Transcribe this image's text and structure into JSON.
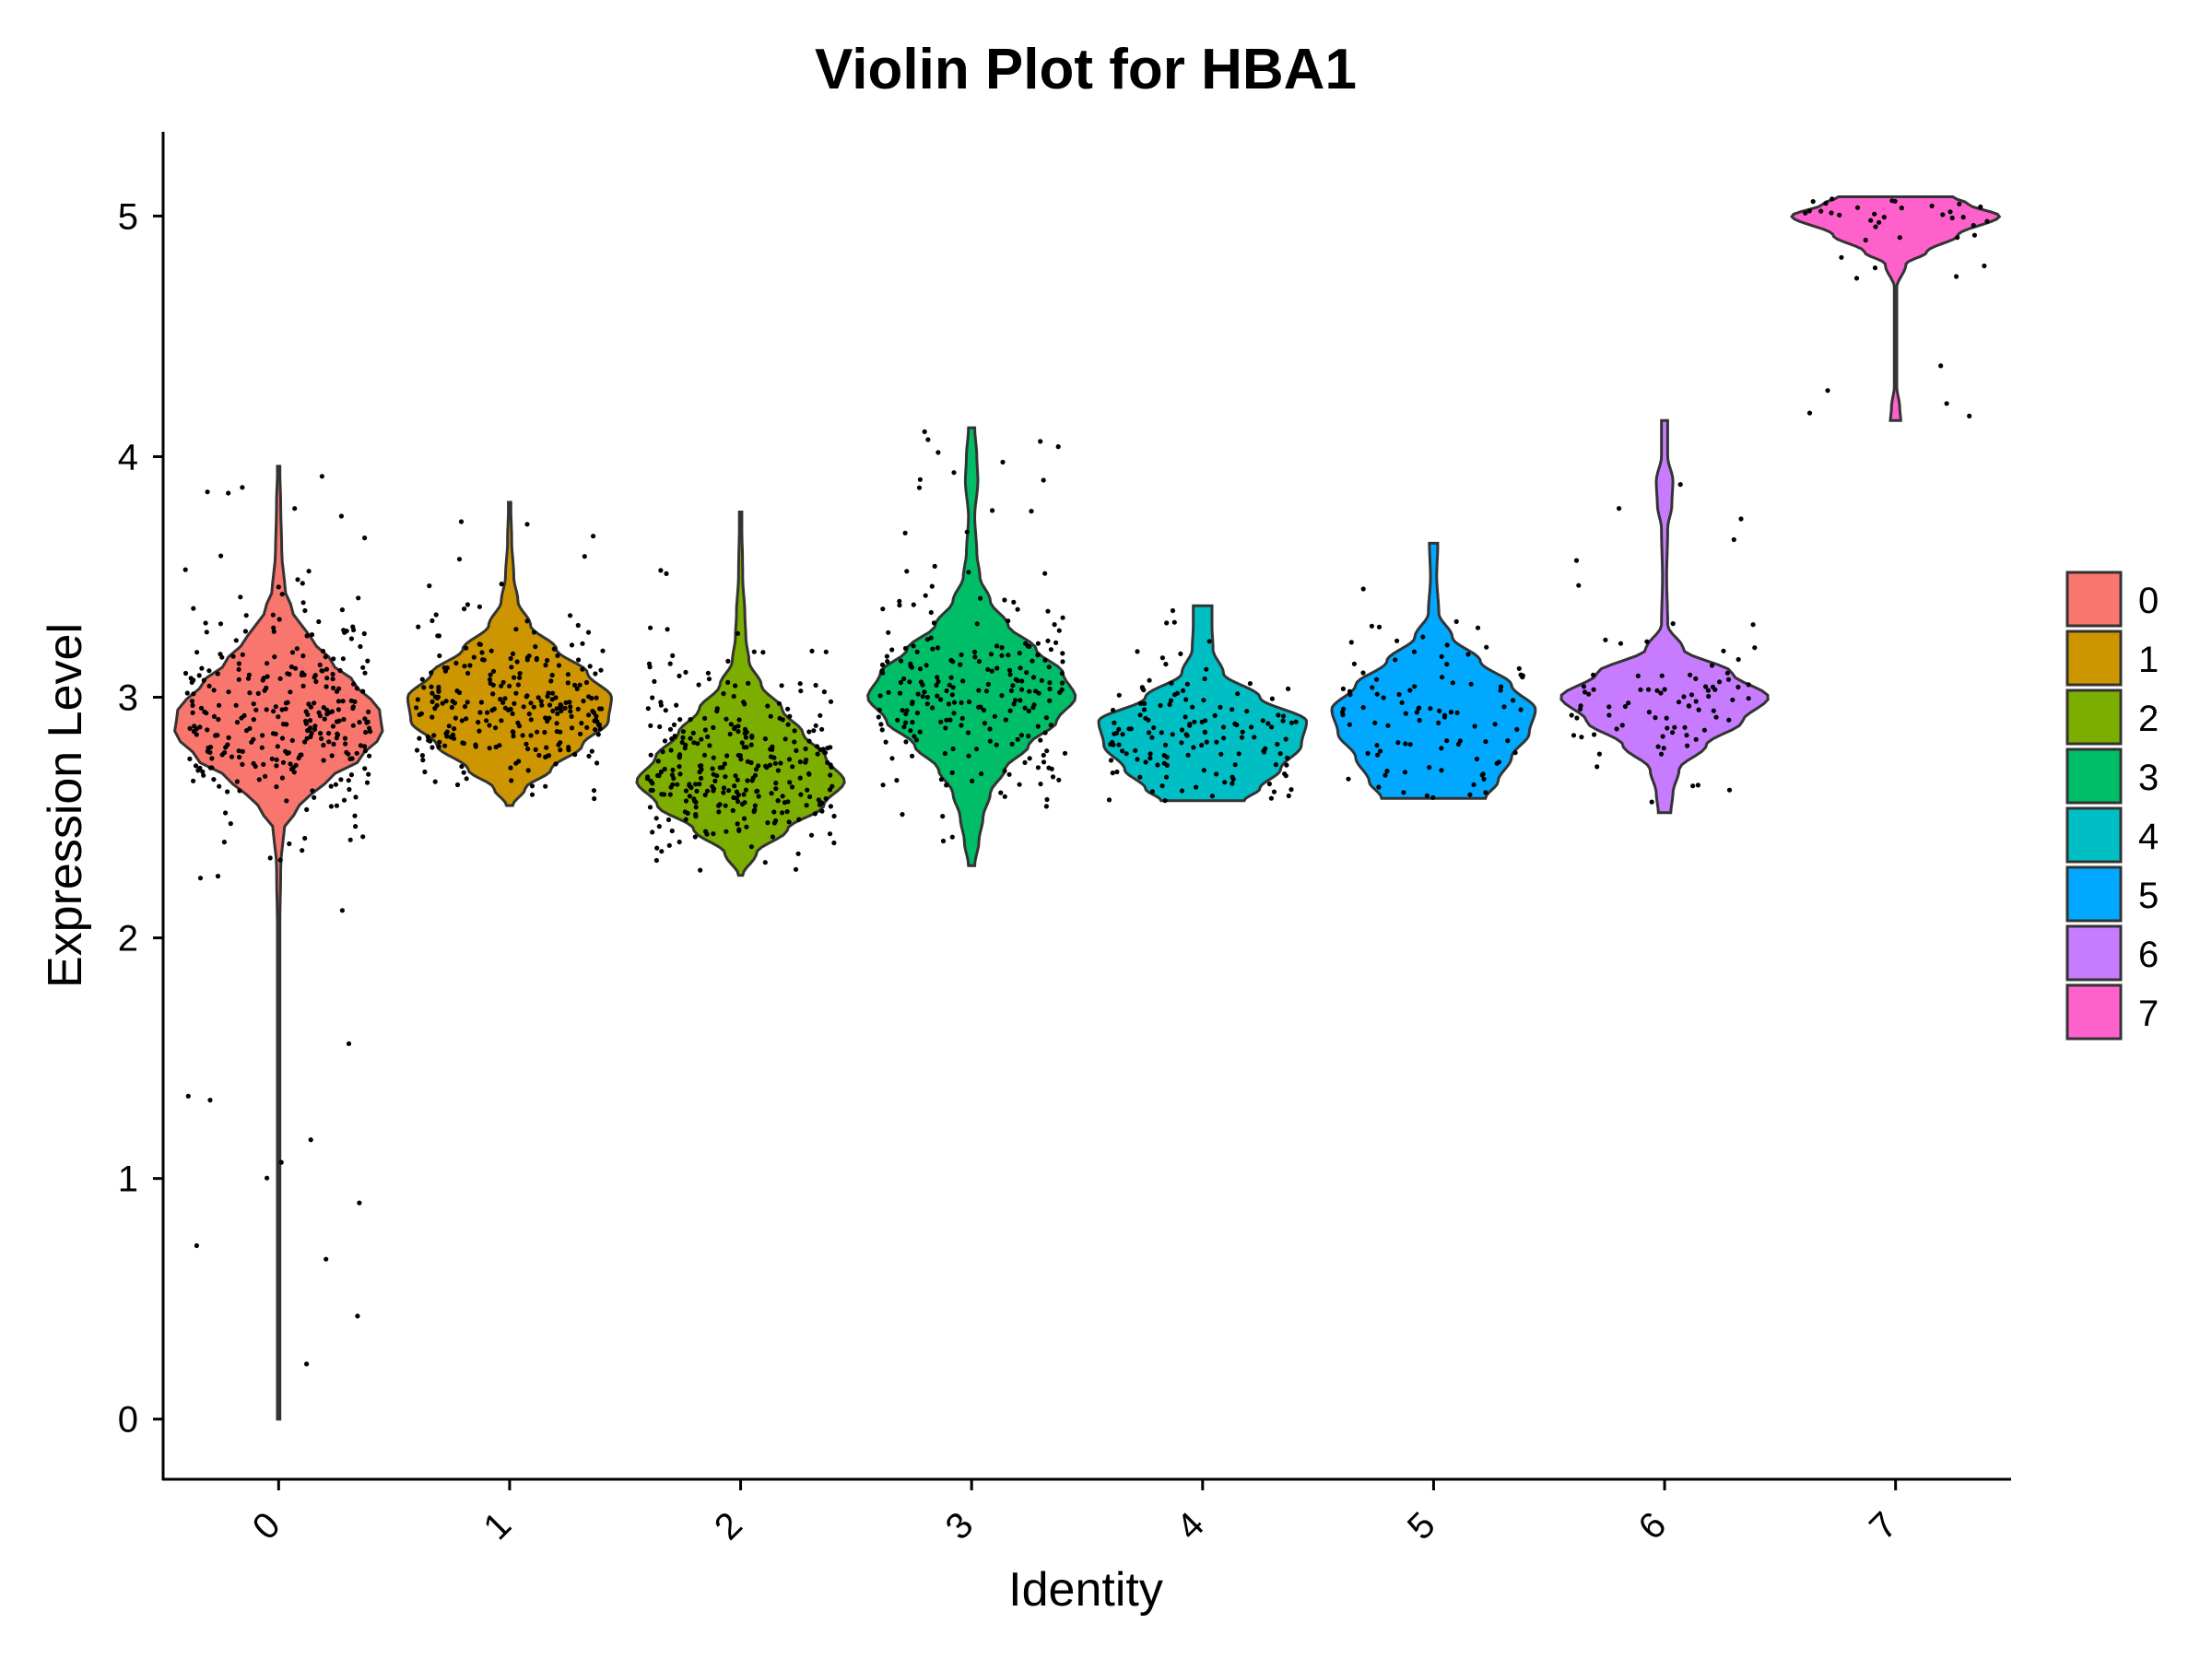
{
  "chart_data": {
    "type": "violin",
    "title": "Violin Plot for HBA1",
    "xlabel": "Identity",
    "ylabel": "Expression Level",
    "ylim": [
      -0.25,
      5.35
    ],
    "yticks": [
      "0",
      "1",
      "2",
      "3",
      "4",
      "5"
    ],
    "categories": [
      "0",
      "1",
      "2",
      "3",
      "4",
      "5",
      "6",
      "7"
    ],
    "grid": false,
    "legend_position": "right",
    "legend": [
      "0",
      "1",
      "2",
      "3",
      "4",
      "5",
      "6",
      "7"
    ],
    "series": [
      {
        "name": "0",
        "color": "#F8766D",
        "min": 0.0,
        "max": 3.96,
        "mode": 2.88,
        "n_points": 320,
        "profile": [
          [
            0.0,
            0.01
          ],
          [
            0.5,
            0.01
          ],
          [
            1.0,
            0.01
          ],
          [
            1.5,
            0.01
          ],
          [
            2.0,
            0.01
          ],
          [
            2.3,
            0.02
          ],
          [
            2.45,
            0.05
          ],
          [
            2.55,
            0.2
          ],
          [
            2.65,
            0.45
          ],
          [
            2.75,
            0.8
          ],
          [
            2.85,
            1.0
          ],
          [
            2.95,
            0.97
          ],
          [
            3.05,
            0.75
          ],
          [
            3.15,
            0.5
          ],
          [
            3.25,
            0.3
          ],
          [
            3.35,
            0.14
          ],
          [
            3.45,
            0.06
          ],
          [
            3.6,
            0.03
          ],
          [
            3.8,
            0.02
          ],
          [
            3.96,
            0.01
          ]
        ]
      },
      {
        "name": "1",
        "color": "#CD9600",
        "min": 2.55,
        "max": 3.81,
        "mode": 2.95,
        "n_points": 260,
        "profile": [
          [
            2.55,
            0.03
          ],
          [
            2.62,
            0.15
          ],
          [
            2.7,
            0.4
          ],
          [
            2.8,
            0.7
          ],
          [
            2.9,
            0.95
          ],
          [
            3.0,
            0.98
          ],
          [
            3.1,
            0.75
          ],
          [
            3.2,
            0.45
          ],
          [
            3.3,
            0.2
          ],
          [
            3.4,
            0.08
          ],
          [
            3.5,
            0.04
          ],
          [
            3.65,
            0.02
          ],
          [
            3.81,
            0.01
          ]
        ]
      },
      {
        "name": "2",
        "color": "#7CAE00",
        "min": 2.26,
        "max": 3.77,
        "mode": 2.65,
        "n_points": 300,
        "profile": [
          [
            2.26,
            0.02
          ],
          [
            2.35,
            0.15
          ],
          [
            2.45,
            0.45
          ],
          [
            2.55,
            0.8
          ],
          [
            2.65,
            1.0
          ],
          [
            2.75,
            0.82
          ],
          [
            2.85,
            0.6
          ],
          [
            2.95,
            0.4
          ],
          [
            3.05,
            0.2
          ],
          [
            3.15,
            0.08
          ],
          [
            3.25,
            0.05
          ],
          [
            3.35,
            0.04
          ],
          [
            3.5,
            0.02
          ],
          [
            3.77,
            0.01
          ]
        ]
      },
      {
        "name": "3",
        "color": "#00BE67",
        "min": 2.3,
        "max": 4.12,
        "mode": 3.02,
        "n_points": 230,
        "profile": [
          [
            2.3,
            0.03
          ],
          [
            2.4,
            0.07
          ],
          [
            2.5,
            0.11
          ],
          [
            2.6,
            0.18
          ],
          [
            2.7,
            0.32
          ],
          [
            2.8,
            0.55
          ],
          [
            2.9,
            0.82
          ],
          [
            3.0,
            1.0
          ],
          [
            3.1,
            0.88
          ],
          [
            3.2,
            0.62
          ],
          [
            3.3,
            0.35
          ],
          [
            3.4,
            0.18
          ],
          [
            3.5,
            0.08
          ],
          [
            3.6,
            0.05
          ],
          [
            3.75,
            0.03
          ],
          [
            3.9,
            0.06
          ],
          [
            4.0,
            0.05
          ],
          [
            4.12,
            0.03
          ]
        ]
      },
      {
        "name": "4",
        "color": "#00BFC4",
        "min": 2.57,
        "max": 3.38,
        "mode": 2.85,
        "n_points": 140,
        "profile": [
          [
            2.57,
            0.4
          ],
          [
            2.62,
            0.55
          ],
          [
            2.7,
            0.75
          ],
          [
            2.8,
            0.95
          ],
          [
            2.9,
            1.0
          ],
          [
            3.0,
            0.55
          ],
          [
            3.1,
            0.2
          ],
          [
            3.2,
            0.1
          ],
          [
            3.3,
            0.09
          ],
          [
            3.38,
            0.09
          ]
        ]
      },
      {
        "name": "5",
        "color": "#00A9FF",
        "min": 2.58,
        "max": 3.64,
        "mode": 2.9,
        "n_points": 95,
        "profile": [
          [
            2.58,
            0.5
          ],
          [
            2.65,
            0.62
          ],
          [
            2.75,
            0.75
          ],
          [
            2.85,
            0.92
          ],
          [
            2.95,
            0.98
          ],
          [
            3.05,
            0.75
          ],
          [
            3.15,
            0.45
          ],
          [
            3.25,
            0.18
          ],
          [
            3.35,
            0.05
          ],
          [
            3.5,
            0.03
          ],
          [
            3.64,
            0.04
          ]
        ]
      },
      {
        "name": "6",
        "color": "#C77CFF",
        "min": 2.52,
        "max": 4.15,
        "mode": 3.0,
        "n_points": 85,
        "profile": [
          [
            2.52,
            0.06
          ],
          [
            2.6,
            0.08
          ],
          [
            2.7,
            0.14
          ],
          [
            2.8,
            0.4
          ],
          [
            2.9,
            0.75
          ],
          [
            3.0,
            1.0
          ],
          [
            3.1,
            0.65
          ],
          [
            3.2,
            0.18
          ],
          [
            3.3,
            0.03
          ],
          [
            3.5,
            0.02
          ],
          [
            3.7,
            0.03
          ],
          [
            3.8,
            0.07
          ],
          [
            3.9,
            0.08
          ],
          [
            4.0,
            0.03
          ],
          [
            4.15,
            0.03
          ]
        ]
      },
      {
        "name": "7",
        "color": "#FF61CC",
        "min": 4.15,
        "max": 5.08,
        "mode": 5.0,
        "n_points": 40,
        "profile": [
          [
            4.15,
            0.05
          ],
          [
            4.2,
            0.04
          ],
          [
            4.3,
            0.01
          ],
          [
            4.5,
            0.01
          ],
          [
            4.7,
            0.01
          ],
          [
            4.8,
            0.1
          ],
          [
            4.85,
            0.3
          ],
          [
            4.92,
            0.6
          ],
          [
            5.0,
            1.0
          ],
          [
            5.05,
            0.7
          ],
          [
            5.08,
            0.55
          ]
        ]
      }
    ]
  }
}
